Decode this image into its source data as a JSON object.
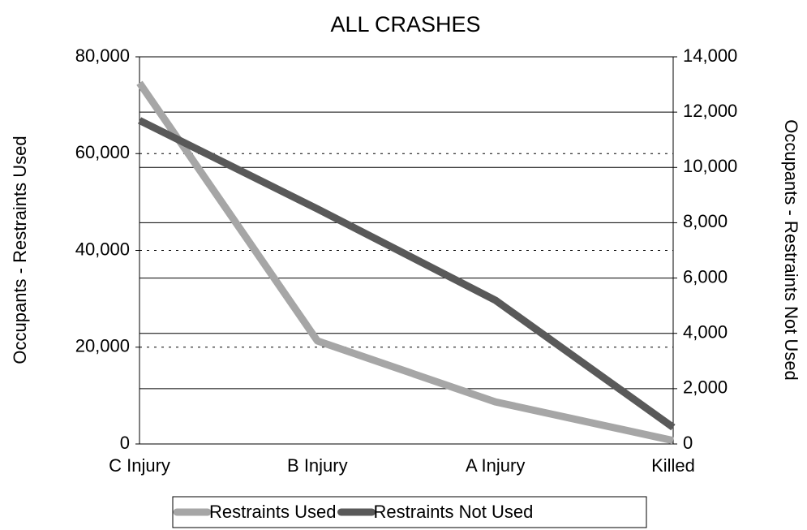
{
  "chart_data": {
    "type": "line",
    "title": "ALL CRASHES",
    "y_label": "Occupants - Restraints Used",
    "y2_label": "Occupants - Restraints Not Used",
    "categories": [
      "C Injury",
      "B Injury",
      "A Injury",
      "Killed"
    ],
    "series": [
      {
        "name": "Restraints Used",
        "color": "#a6a6a6",
        "values": [
          74600,
          21300,
          8700,
          700
        ]
      },
      {
        "name": "Restraints Not Used",
        "color": "#595959",
        "axis": "y2",
        "values": [
          11700,
          8500,
          5200,
          600
        ]
      }
    ],
    "ylim": [
      0,
      80000
    ],
    "yticks": [
      0,
      {
        "value": 20000,
        "label": "20,000"
      },
      {
        "value": 40000,
        "label": "40,000"
      },
      {
        "value": 60000,
        "label": "60,000"
      },
      {
        "value": 80000,
        "label": "80,000"
      }
    ],
    "y2lim": [
      0,
      14000
    ],
    "y2ticks": [
      0,
      {
        "value": 2000,
        "label": "2,000"
      },
      {
        "value": 4000,
        "label": "4,000"
      },
      {
        "value": 6000,
        "label": "6,000"
      },
      {
        "value": 8000,
        "label": "8,000"
      },
      {
        "value": 10000,
        "label": "10,000"
      },
      {
        "value": 12000,
        "label": "12,000"
      },
      {
        "value": 14000,
        "label": "14,000"
      }
    ],
    "grid": true,
    "legend": "bottom"
  }
}
